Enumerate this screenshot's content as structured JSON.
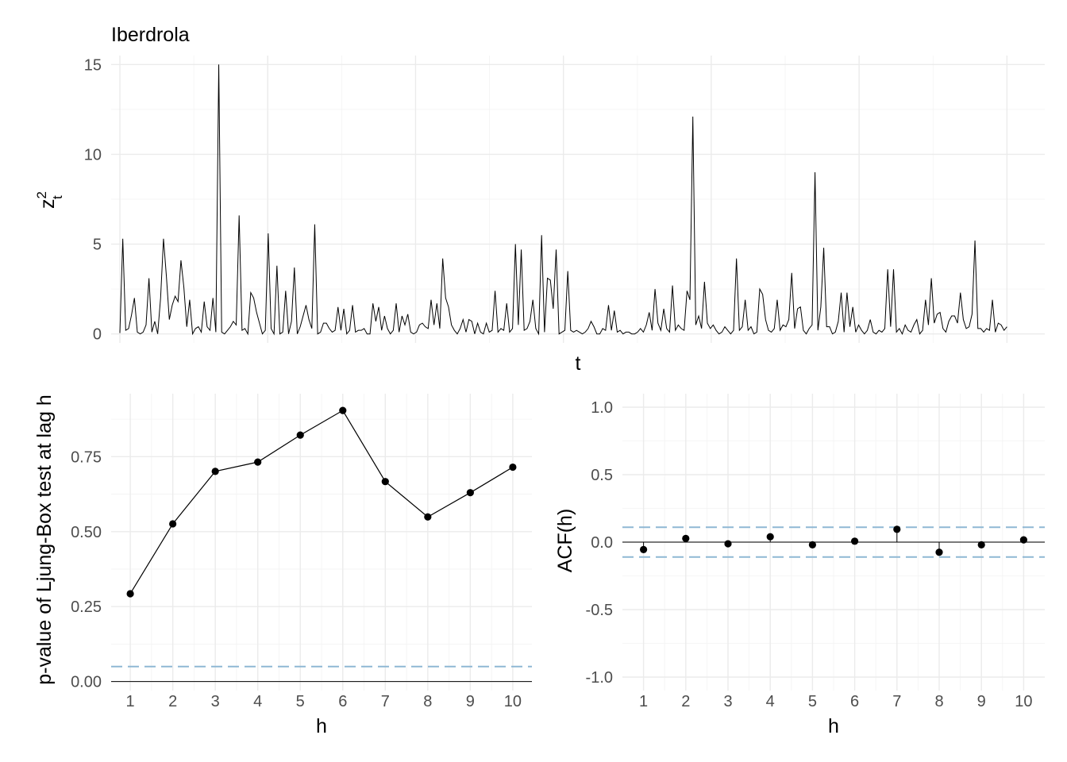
{
  "chart_data": [
    {
      "id": "top",
      "type": "line",
      "title": "Iberdrola",
      "xlabel": "t",
      "ylabel_base": "z",
      "ylabel_sup": "2",
      "ylabel_sub": "t",
      "ylim": [
        -0.5,
        15.5
      ],
      "y_ticks": [
        0,
        5,
        10,
        15
      ],
      "x_tick_labels": false,
      "grid": true,
      "y": [
        0.05,
        5.3,
        0.2,
        0.3,
        1.05,
        2.0,
        0.1,
        0.0,
        0.1,
        0.5,
        3.1,
        0.1,
        0.7,
        0.0,
        2.0,
        5.3,
        3.2,
        0.8,
        1.6,
        2.1,
        1.8,
        4.1,
        2.6,
        0.4,
        1.9,
        0.0,
        0.3,
        0.4,
        0.1,
        1.8,
        0.4,
        0.2,
        2.0,
        0.1,
        15.0,
        0.1,
        0.0,
        0.2,
        0.4,
        0.7,
        0.5,
        6.6,
        0.2,
        0.3,
        0.0,
        2.3,
        2.0,
        1.2,
        0.6,
        0.0,
        0.2,
        5.6,
        0.3,
        0.0,
        3.8,
        0.0,
        0.1,
        2.4,
        0.0,
        0.7,
        3.7,
        0.0,
        0.4,
        1.0,
        1.6,
        0.8,
        0.3,
        6.1,
        0.0,
        0.1,
        0.6,
        0.6,
        0.3,
        0.1,
        0.2,
        1.5,
        0.2,
        1.4,
        0.0,
        0.2,
        1.6,
        0.1,
        0.2,
        0.2,
        0.3,
        0.0,
        0.0,
        1.7,
        0.7,
        1.5,
        0.2,
        1.0,
        0.3,
        0.0,
        0.2,
        1.7,
        0.1,
        1.0,
        0.5,
        1.1,
        0.1,
        0.0,
        0.1,
        0.5,
        0.6,
        0.4,
        0.3,
        1.9,
        0.5,
        1.7,
        0.3,
        4.2,
        2.0,
        1.5,
        0.5,
        0.2,
        0.0,
        0.3,
        0.8,
        0.1,
        0.8,
        0.7,
        0.0,
        0.6,
        0.1,
        0.0,
        0.6,
        0.1,
        0.2,
        2.4,
        0.1,
        0.3,
        0.2,
        1.7,
        0.1,
        0.3,
        5.0,
        0.5,
        4.7,
        0.2,
        0.3,
        0.7,
        1.9,
        0.3,
        0.0,
        5.5,
        0.1,
        3.1,
        3.0,
        1.4,
        4.7,
        0.0,
        0.1,
        0.2,
        3.5,
        0.2,
        0.1,
        0.2,
        0.1,
        0.0,
        0.1,
        0.3,
        0.7,
        0.4,
        0.0,
        0.0,
        0.3,
        0.2,
        1.6,
        0.2,
        1.3,
        0.1,
        0.2,
        0.0,
        0.1,
        0.1,
        0.0,
        0.0,
        0.1,
        0.3,
        0.1,
        0.5,
        1.2,
        0.2,
        2.5,
        0.6,
        0.2,
        1.4,
        0.3,
        0.1,
        2.7,
        0.2,
        0.5,
        0.3,
        0.2,
        2.4,
        1.9,
        12.1,
        0.5,
        1.0,
        0.3,
        2.9,
        0.6,
        0.3,
        0.5,
        0.2,
        0.0,
        0.1,
        0.4,
        0.2,
        0.0,
        0.2,
        4.2,
        0.2,
        0.4,
        1.9,
        0.2,
        0.4,
        0.0,
        0.1,
        2.5,
        2.2,
        0.8,
        0.2,
        0.1,
        0.3,
        1.9,
        0.2,
        0.5,
        0.4,
        0.8,
        3.4,
        0.3,
        1.4,
        1.5,
        0.2,
        0.0,
        0.3,
        0.5,
        9.0,
        0.2,
        1.5,
        4.8,
        0.4,
        0.4,
        0.0,
        0.1,
        0.7,
        2.3,
        0.1,
        2.3,
        0.4,
        1.5,
        0.1,
        0.5,
        0.2,
        0.0,
        0.2,
        0.8,
        0.1,
        0.0,
        0.2,
        0.1,
        0.3,
        3.6,
        0.4,
        3.6,
        0.1,
        0.3,
        0.0,
        0.5,
        0.2,
        0.1,
        0.5,
        0.8,
        0.0,
        0.2,
        1.9,
        0.5,
        3.1,
        0.6,
        1.1,
        1.2,
        0.3,
        0.1,
        0.7,
        1.0,
        1.0,
        0.6,
        2.3,
        0.8,
        0.3,
        0.4,
        1.1,
        5.2,
        0.3,
        0.3,
        0.1,
        0.3,
        0.2,
        1.9,
        0.1,
        0.6,
        0.5,
        0.2,
        0.4
      ]
    },
    {
      "id": "ljung",
      "type": "line",
      "xlabel": "h",
      "ylabel": "p-value of Ljung-Box test at lag h",
      "ylim": [
        -0.03,
        0.96
      ],
      "y_ticks": [
        0,
        0.25,
        0.5,
        0.75
      ],
      "y_tick_labels": [
        "0.00",
        "0.25",
        "0.50",
        "0.75"
      ],
      "x": [
        1,
        2,
        3,
        4,
        5,
        6,
        7,
        8,
        9,
        10
      ],
      "y": [
        0.293,
        0.526,
        0.701,
        0.732,
        0.822,
        0.904,
        0.667,
        0.549,
        0.63,
        0.715
      ],
      "reference_line_dashed": 0.05,
      "grid": true
    },
    {
      "id": "acf",
      "type": "scatter",
      "xlabel": "h",
      "ylabel": "ACF(h)",
      "ylim": [
        -1.1,
        1.1
      ],
      "y_ticks": [
        -1.0,
        -0.5,
        0.0,
        0.5,
        1.0
      ],
      "y_tick_labels": [
        "-1.0",
        "-0.5",
        "0.0",
        "0.5",
        "1.0"
      ],
      "x": [
        1,
        2,
        3,
        4,
        5,
        6,
        7,
        8,
        9,
        10
      ],
      "y": [
        -0.055,
        0.027,
        -0.012,
        0.04,
        -0.02,
        0.007,
        0.095,
        -0.075,
        -0.02,
        0.017
      ],
      "confidence_bounds": [
        0.11,
        -0.11
      ],
      "grid": true
    }
  ],
  "colors": {
    "line": "#000000",
    "reference": "#8fb8d4",
    "grid": "#ebebeb",
    "tick_text": "#4d4d4d"
  }
}
